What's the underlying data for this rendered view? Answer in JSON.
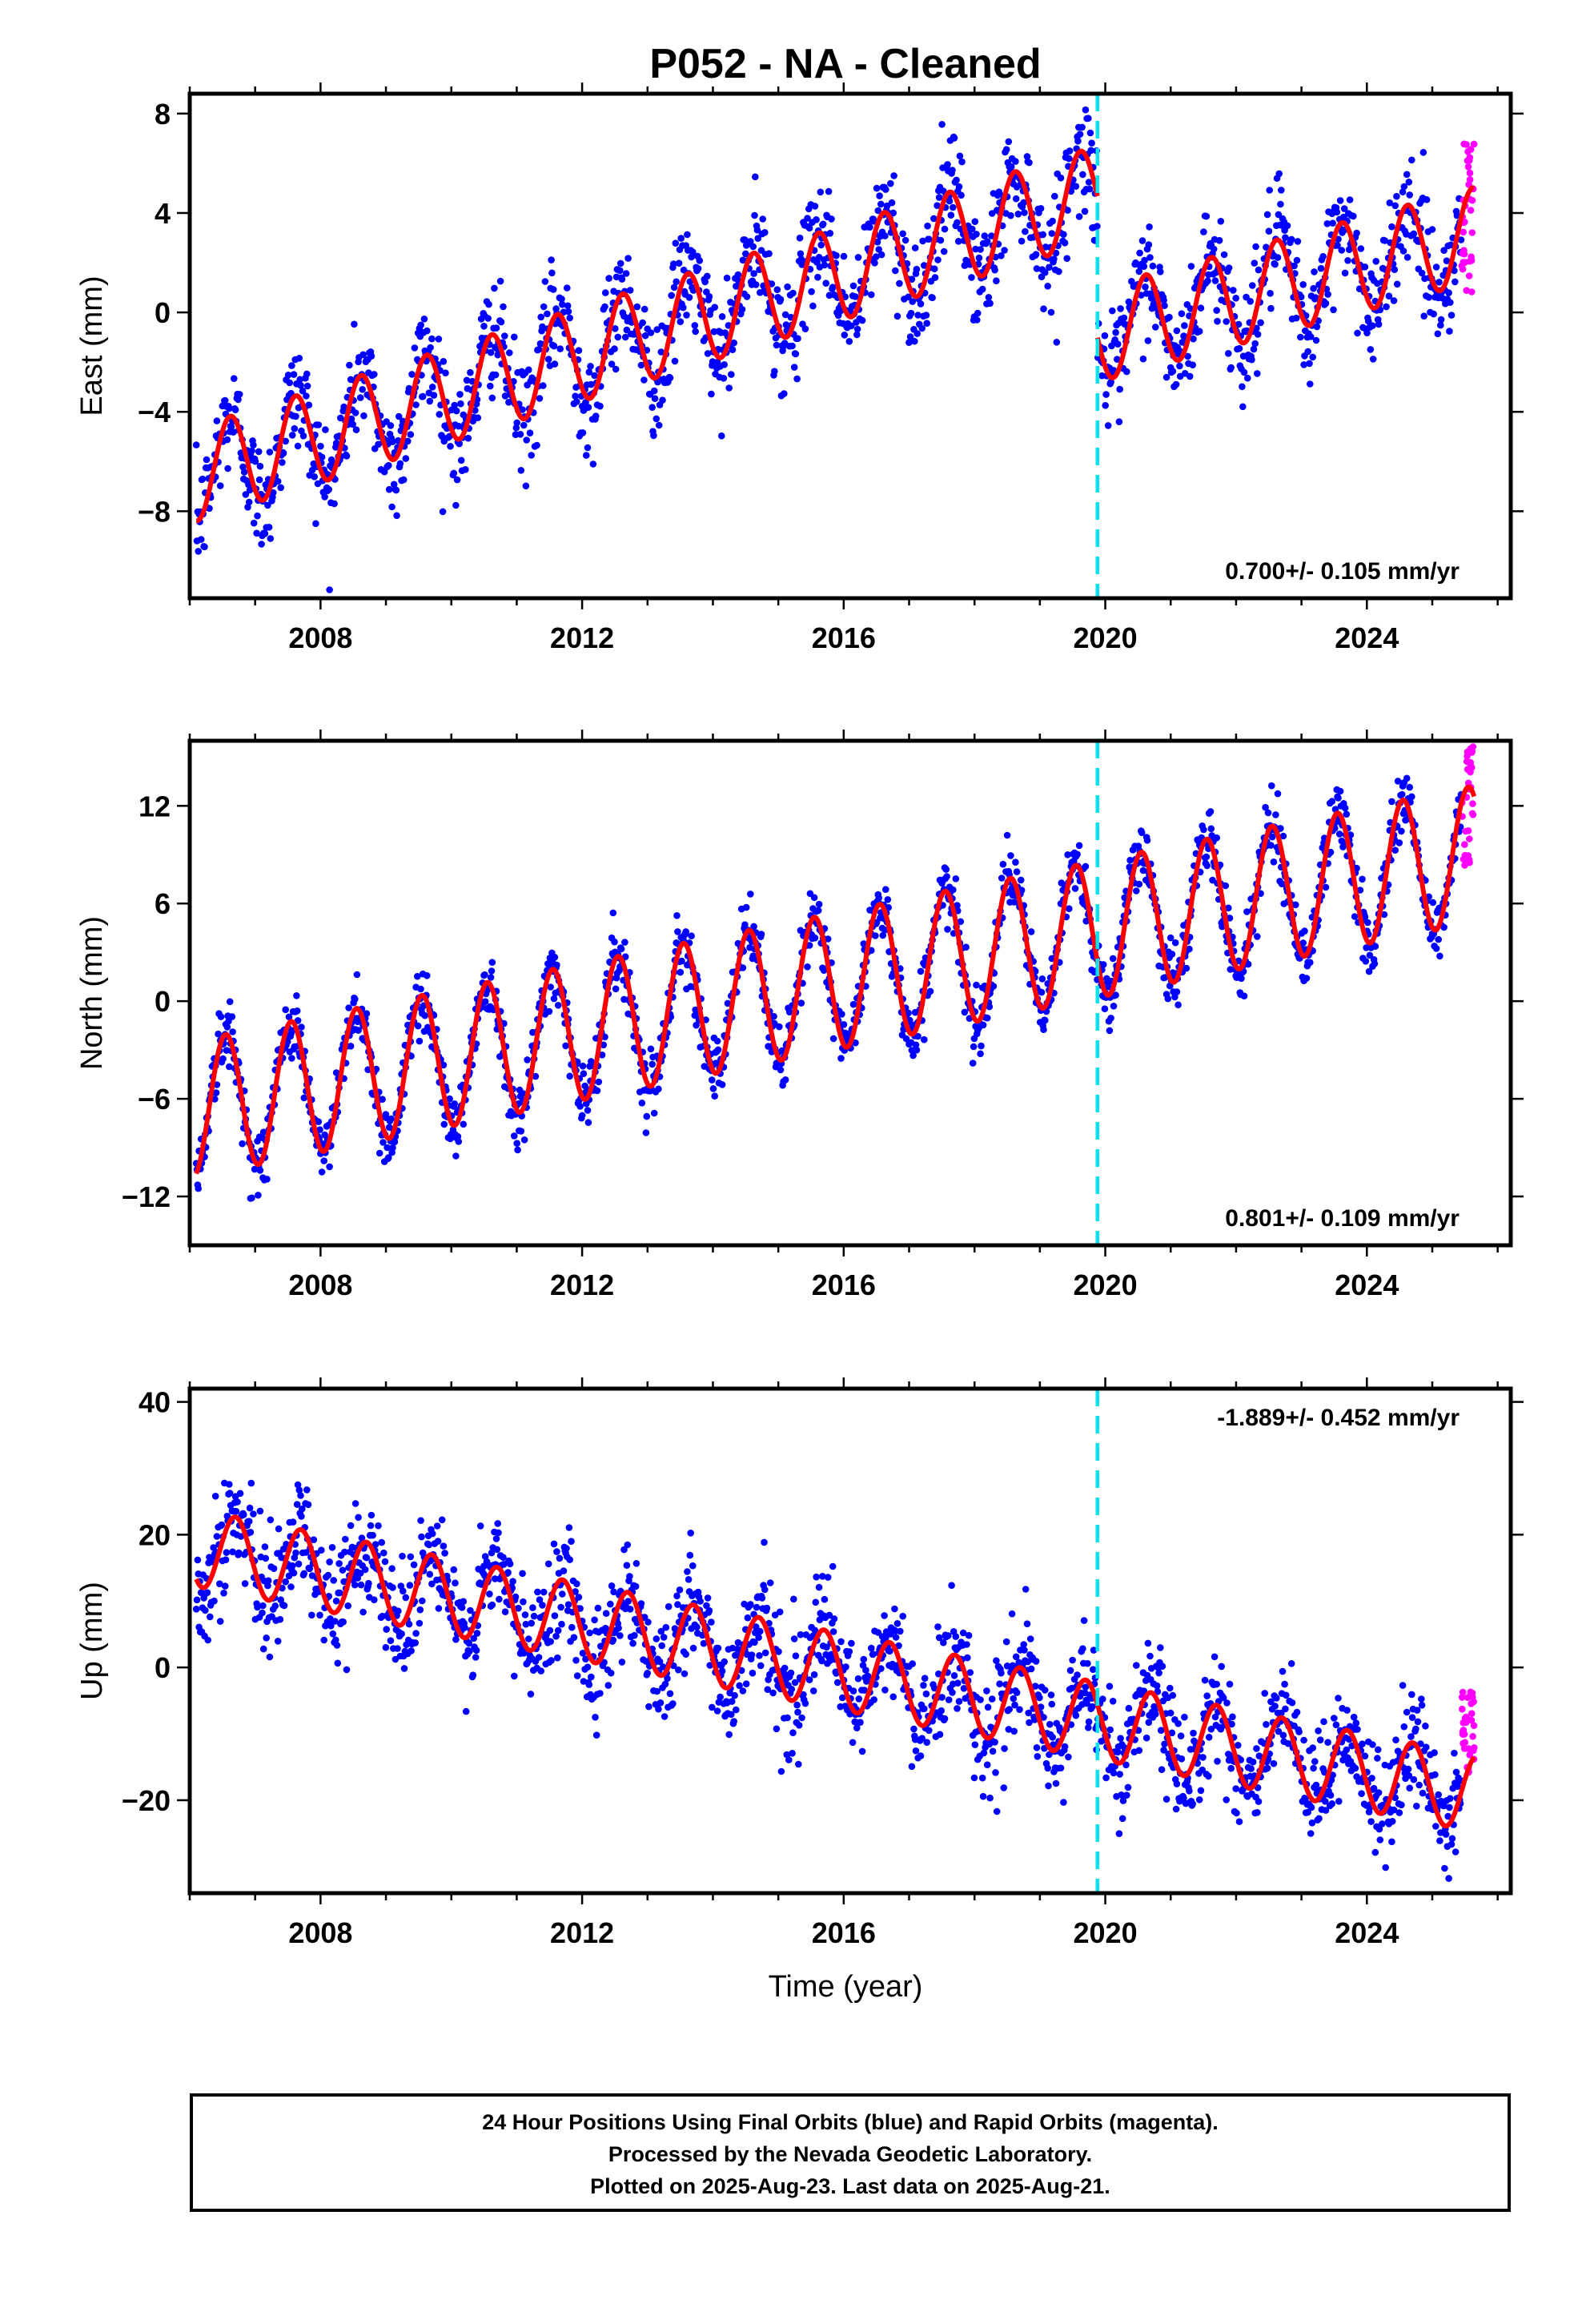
{
  "figure": {
    "title": "P052  - NA - Cleaned",
    "xlabel": "Time (year)",
    "legend_lines": [
      "24 Hour Positions Using Final Orbits (blue) and Rapid Orbits (magenta).",
      "Processed by the Nevada Geodetic Laboratory.",
      "Plotted on 2025-Aug-23. Last data on 2025-Aug-21."
    ],
    "colors": {
      "final_orbits": "#0000ff",
      "rapid_orbits": "#ff00ff",
      "model": "#ff0000",
      "event_line": "#00e5ee"
    }
  },
  "chart_data": [
    {
      "type": "scatter",
      "ylabel": "East (mm)",
      "xlim": [
        2006.0,
        2026.2
      ],
      "ylim": [
        -11.5,
        8.8
      ],
      "xticks": [
        2008,
        2012,
        2016,
        2020,
        2024
      ],
      "xticklabels": [
        "2008",
        "2012",
        "2016",
        "2020",
        "2024"
      ],
      "yticks": [
        8,
        4,
        0,
        -4,
        -8
      ],
      "yticklabels": [
        "8",
        "4",
        "0",
        "−4",
        "−8"
      ],
      "rate_label": "0.700+/- 0.105 mm/yr",
      "rate_label_position": "bottom-right",
      "event_year": 2019.88,
      "model": {
        "name": "Fitted model (red)",
        "segments": [
          {
            "t_start": 2006.1,
            "t_end": 2019.88,
            "trend_at_t_start": -6.5,
            "rate": 0.82,
            "annual_amplitude": 1.9,
            "phase_peak": 0.62
          },
          {
            "t_start": 2019.88,
            "t_end": 2025.64,
            "trend_at_t_start": -0.9,
            "rate": 0.7,
            "annual_amplitude": 1.9,
            "phase_peak": 0.62
          }
        ]
      },
      "final_orbits_scatter": 1.1,
      "rapid_orbits_range": [
        2025.45,
        2025.64
      ],
      "rapid_orbits_values": [
        0.8,
        7.1
      ]
    },
    {
      "type": "scatter",
      "ylabel": "North (mm)",
      "xlim": [
        2006.0,
        2026.2
      ],
      "ylim": [
        -15.0,
        16.0
      ],
      "xticks": [
        2008,
        2012,
        2016,
        2020,
        2024
      ],
      "xticklabels": [
        "2008",
        "2012",
        "2016",
        "2020",
        "2024"
      ],
      "yticks": [
        12,
        6,
        0,
        -6,
        -12
      ],
      "yticklabels": [
        "12",
        "6",
        "0",
        "−6",
        "−12"
      ],
      "rate_label": "0.801+/- 0.109 mm/yr",
      "rate_label_position": "bottom-right",
      "event_year": 2019.88,
      "model": {
        "name": "Fitted model (red)",
        "segments": [
          {
            "t_start": 2006.1,
            "t_end": 2025.64,
            "trend_at_t_start": -6.6,
            "rate": 0.8,
            "annual_amplitude": 4.2,
            "phase_peak": 0.55
          }
        ]
      },
      "final_orbits_scatter": 1.0,
      "rapid_orbits_range": [
        2025.45,
        2025.64
      ],
      "rapid_orbits_values": [
        8.2,
        15.8
      ]
    },
    {
      "type": "scatter",
      "ylabel": "Up (mm)",
      "xlim": [
        2006.0,
        2026.2
      ],
      "ylim": [
        -34.0,
        42.0
      ],
      "xticks": [
        2008,
        2012,
        2016,
        2020,
        2024
      ],
      "xticklabels": [
        "2008",
        "2012",
        "2016",
        "2020",
        "2024"
      ],
      "yticks": [
        40,
        20,
        0,
        -20
      ],
      "yticklabels": [
        "40",
        "20",
        "0",
        "−20"
      ],
      "rate_label": "-1.889+/- 0.452 mm/yr",
      "rate_label_position": "top-right",
      "event_year": 2019.88,
      "model": {
        "name": "Fitted model (red)",
        "segments": [
          {
            "t_start": 2006.1,
            "t_end": 2025.64,
            "trend_at_t_start": 18.0,
            "rate": -1.889,
            "annual_amplitude": 5.8,
            "phase_peak": 0.7
          }
        ]
      },
      "final_orbits_scatter": 4.2,
      "rapid_orbits_range": [
        2025.45,
        2025.64
      ],
      "rapid_orbits_values": [
        -16.0,
        -3.5
      ]
    }
  ]
}
